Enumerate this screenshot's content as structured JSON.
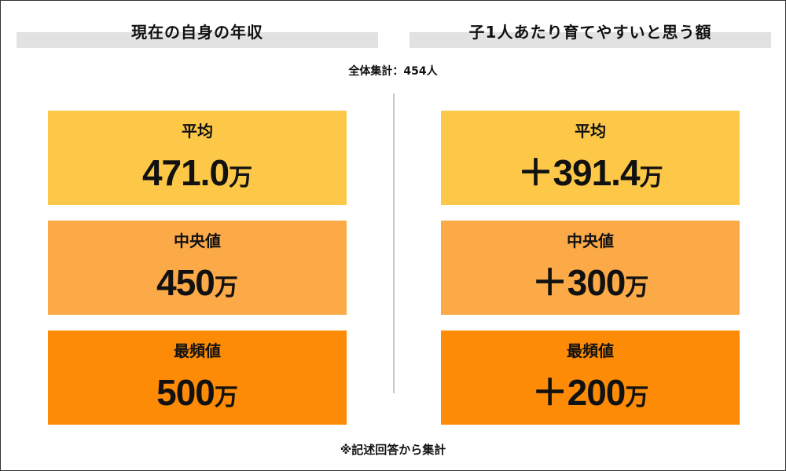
{
  "headers": {
    "left": "現在の自身の年収",
    "right": "子1人あたり育てやすいと思う額"
  },
  "total_label": "全体集計：454人",
  "footnote": "※記述回答から集計",
  "colors": {
    "mean": "#fdc847",
    "median": "#fcaa48",
    "mode": "#fd8b06"
  },
  "chart_data": {
    "type": "table",
    "unit": "万",
    "respondents": 454,
    "columns": [
      "現在の自身の年収",
      "子1人あたり育てやすいと思う額"
    ],
    "rows": [
      {
        "label": "平均",
        "values": [
          471.0,
          391.4
        ],
        "display": [
          "471.0",
          "＋391.4"
        ]
      },
      {
        "label": "中央値",
        "values": [
          450,
          300
        ],
        "display": [
          "450",
          "＋300"
        ]
      },
      {
        "label": "最頻値",
        "values": [
          500,
          200
        ],
        "display": [
          "500",
          "＋200"
        ]
      }
    ]
  }
}
